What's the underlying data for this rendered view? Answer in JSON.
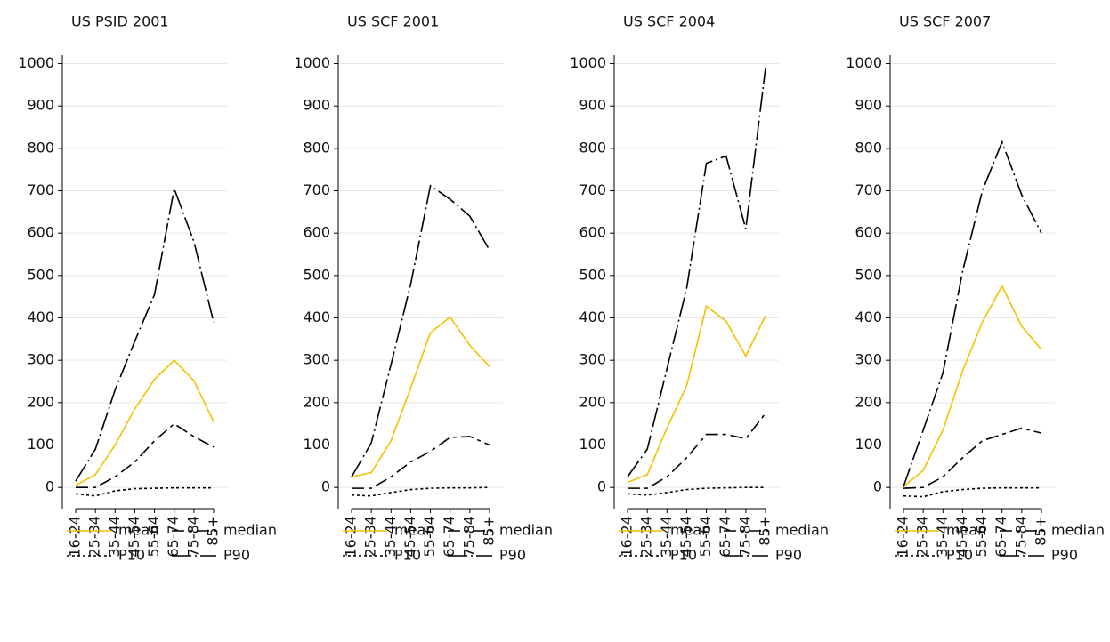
{
  "chart_data": [
    {
      "type": "line",
      "title": "US PSID 2001",
      "categories": [
        "16-24",
        "25-34",
        "35-44",
        "45-54",
        "55-64",
        "65-74",
        "75-84",
        "85+"
      ],
      "ylim": [
        -50,
        1020
      ],
      "yticks": [
        0,
        100,
        200,
        300,
        400,
        500,
        600,
        700,
        800,
        900,
        1000
      ],
      "grid": true,
      "series": [
        {
          "name": "mean",
          "color": "#f2c200",
          "dash": "none",
          "values": [
            5,
            30,
            100,
            185,
            255,
            300,
            252,
            155
          ]
        },
        {
          "name": "median",
          "color": "#000000",
          "dash": "14 5 4 5",
          "values": [
            0,
            0,
            25,
            60,
            110,
            150,
            120,
            95
          ]
        },
        {
          "name": "P10",
          "color": "#000000",
          "dash": "3 3",
          "values": [
            -15,
            -20,
            -8,
            -3,
            -2,
            -1,
            -1,
            -1
          ]
        },
        {
          "name": "P90",
          "color": "#000000",
          "dash": "22 4 2 4",
          "values": [
            15,
            90,
            230,
            345,
            455,
            705,
            580,
            390
          ]
        }
      ]
    },
    {
      "type": "line",
      "title": "US SCF 2001",
      "categories": [
        "16-24",
        "25-34",
        "35-44",
        "45-54",
        "55-64",
        "65-74",
        "75-84",
        "85+"
      ],
      "ylim": [
        -50,
        1020
      ],
      "yticks": [
        0,
        100,
        200,
        300,
        400,
        500,
        600,
        700,
        800,
        900,
        1000
      ],
      "grid": true,
      "series": [
        {
          "name": "mean",
          "color": "#f2c200",
          "dash": "none",
          "values": [
            25,
            35,
            110,
            235,
            365,
            402,
            335,
            285
          ]
        },
        {
          "name": "median",
          "color": "#000000",
          "dash": "14 5 4 5",
          "values": [
            -2,
            -2,
            25,
            60,
            85,
            118,
            120,
            100
          ]
        },
        {
          "name": "P10",
          "color": "#000000",
          "dash": "3 3",
          "values": [
            -18,
            -20,
            -12,
            -5,
            -2,
            -1,
            -1,
            0
          ]
        },
        {
          "name": "P90",
          "color": "#000000",
          "dash": "22 4 2 4",
          "values": [
            25,
            105,
            290,
            480,
            712,
            680,
            640,
            560
          ]
        }
      ]
    },
    {
      "type": "line",
      "title": "US SCF 2004",
      "categories": [
        "16-24",
        "25-34",
        "35-44",
        "45-54",
        "55-64",
        "65-74",
        "75-84",
        "85+"
      ],
      "ylim": [
        -50,
        1020
      ],
      "yticks": [
        0,
        100,
        200,
        300,
        400,
        500,
        600,
        700,
        800,
        900,
        1000
      ],
      "grid": true,
      "series": [
        {
          "name": "mean",
          "color": "#f2c200",
          "dash": "none",
          "values": [
            12,
            30,
            140,
            240,
            428,
            392,
            310,
            405
          ]
        },
        {
          "name": "median",
          "color": "#000000",
          "dash": "14 5 4 5",
          "values": [
            -2,
            -2,
            25,
            70,
            125,
            125,
            115,
            175
          ]
        },
        {
          "name": "P10",
          "color": "#000000",
          "dash": "3 3",
          "values": [
            -15,
            -18,
            -12,
            -5,
            -2,
            -1,
            0,
            0
          ]
        },
        {
          "name": "P90",
          "color": "#000000",
          "dash": "22 4 2 4",
          "values": [
            25,
            90,
            280,
            470,
            765,
            782,
            610,
            990
          ]
        }
      ]
    },
    {
      "type": "line",
      "title": "US SCF 2007",
      "categories": [
        "16-24",
        "25-34",
        "35-44",
        "45-54",
        "55-64",
        "65-74",
        "75-84",
        "85+"
      ],
      "ylim": [
        -50,
        1020
      ],
      "yticks": [
        0,
        100,
        200,
        300,
        400,
        500,
        600,
        700,
        800,
        900,
        1000
      ],
      "grid": true,
      "series": [
        {
          "name": "mean",
          "color": "#f2c200",
          "dash": "none",
          "values": [
            2,
            40,
            135,
            275,
            390,
            475,
            380,
            325
          ]
        },
        {
          "name": "median",
          "color": "#000000",
          "dash": "14 5 4 5",
          "values": [
            -2,
            0,
            25,
            70,
            110,
            125,
            140,
            128
          ]
        },
        {
          "name": "P10",
          "color": "#000000",
          "dash": "3 3",
          "values": [
            -20,
            -22,
            -10,
            -5,
            -2,
            -1,
            -1,
            -1
          ]
        },
        {
          "name": "P90",
          "color": "#000000",
          "dash": "22 4 2 4",
          "values": [
            2,
            135,
            270,
            510,
            700,
            815,
            690,
            600
          ]
        }
      ]
    }
  ]
}
